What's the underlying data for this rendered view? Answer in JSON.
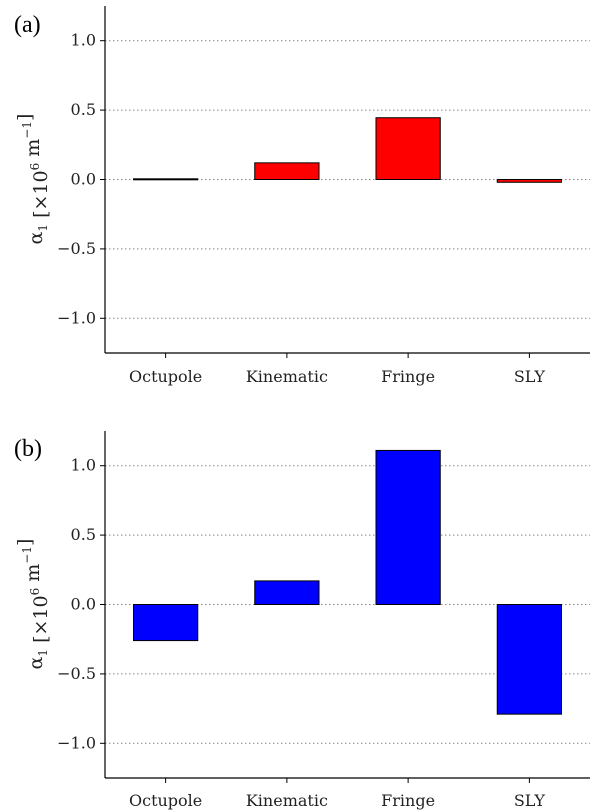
{
  "chart_data": [
    {
      "type": "bar",
      "panel_label": "(a)",
      "categories": [
        "Octupole",
        "Kinematic",
        "Fringe",
        "SLY"
      ],
      "values": [
        0.005,
        0.12,
        0.445,
        -0.02
      ],
      "ylabel": {
        "symbol": "α",
        "subscript": "1",
        "open": " [×10",
        "exponent": "6",
        "unit": " m",
        "unit_exponent": "−1",
        "close": "]"
      },
      "ylim": [
        -1.25,
        1.25
      ],
      "yticks": [
        -1.0,
        -0.5,
        0.0,
        0.5,
        1.0
      ],
      "ytick_labels": [
        "−1.0",
        "−0.5",
        "0.0",
        "0.5",
        "1.0"
      ],
      "grid": "horizontal dotted",
      "bar_color": "#ff0000"
    },
    {
      "type": "bar",
      "panel_label": "(b)",
      "categories": [
        "Octupole",
        "Kinematic",
        "Fringe",
        "SLY"
      ],
      "values": [
        -0.26,
        0.17,
        1.11,
        -0.79
      ],
      "ylabel": {
        "symbol": "α",
        "subscript": "1",
        "open": " [×10",
        "exponent": "6",
        "unit": " m",
        "unit_exponent": "−1",
        "close": "]"
      },
      "ylim": [
        -1.25,
        1.25
      ],
      "yticks": [
        -1.0,
        -0.5,
        0.0,
        0.5,
        1.0
      ],
      "ytick_labels": [
        "−1.0",
        "−0.5",
        "0.0",
        "0.5",
        "1.0"
      ],
      "grid": "horizontal dotted",
      "bar_color": "#0000ff"
    }
  ]
}
